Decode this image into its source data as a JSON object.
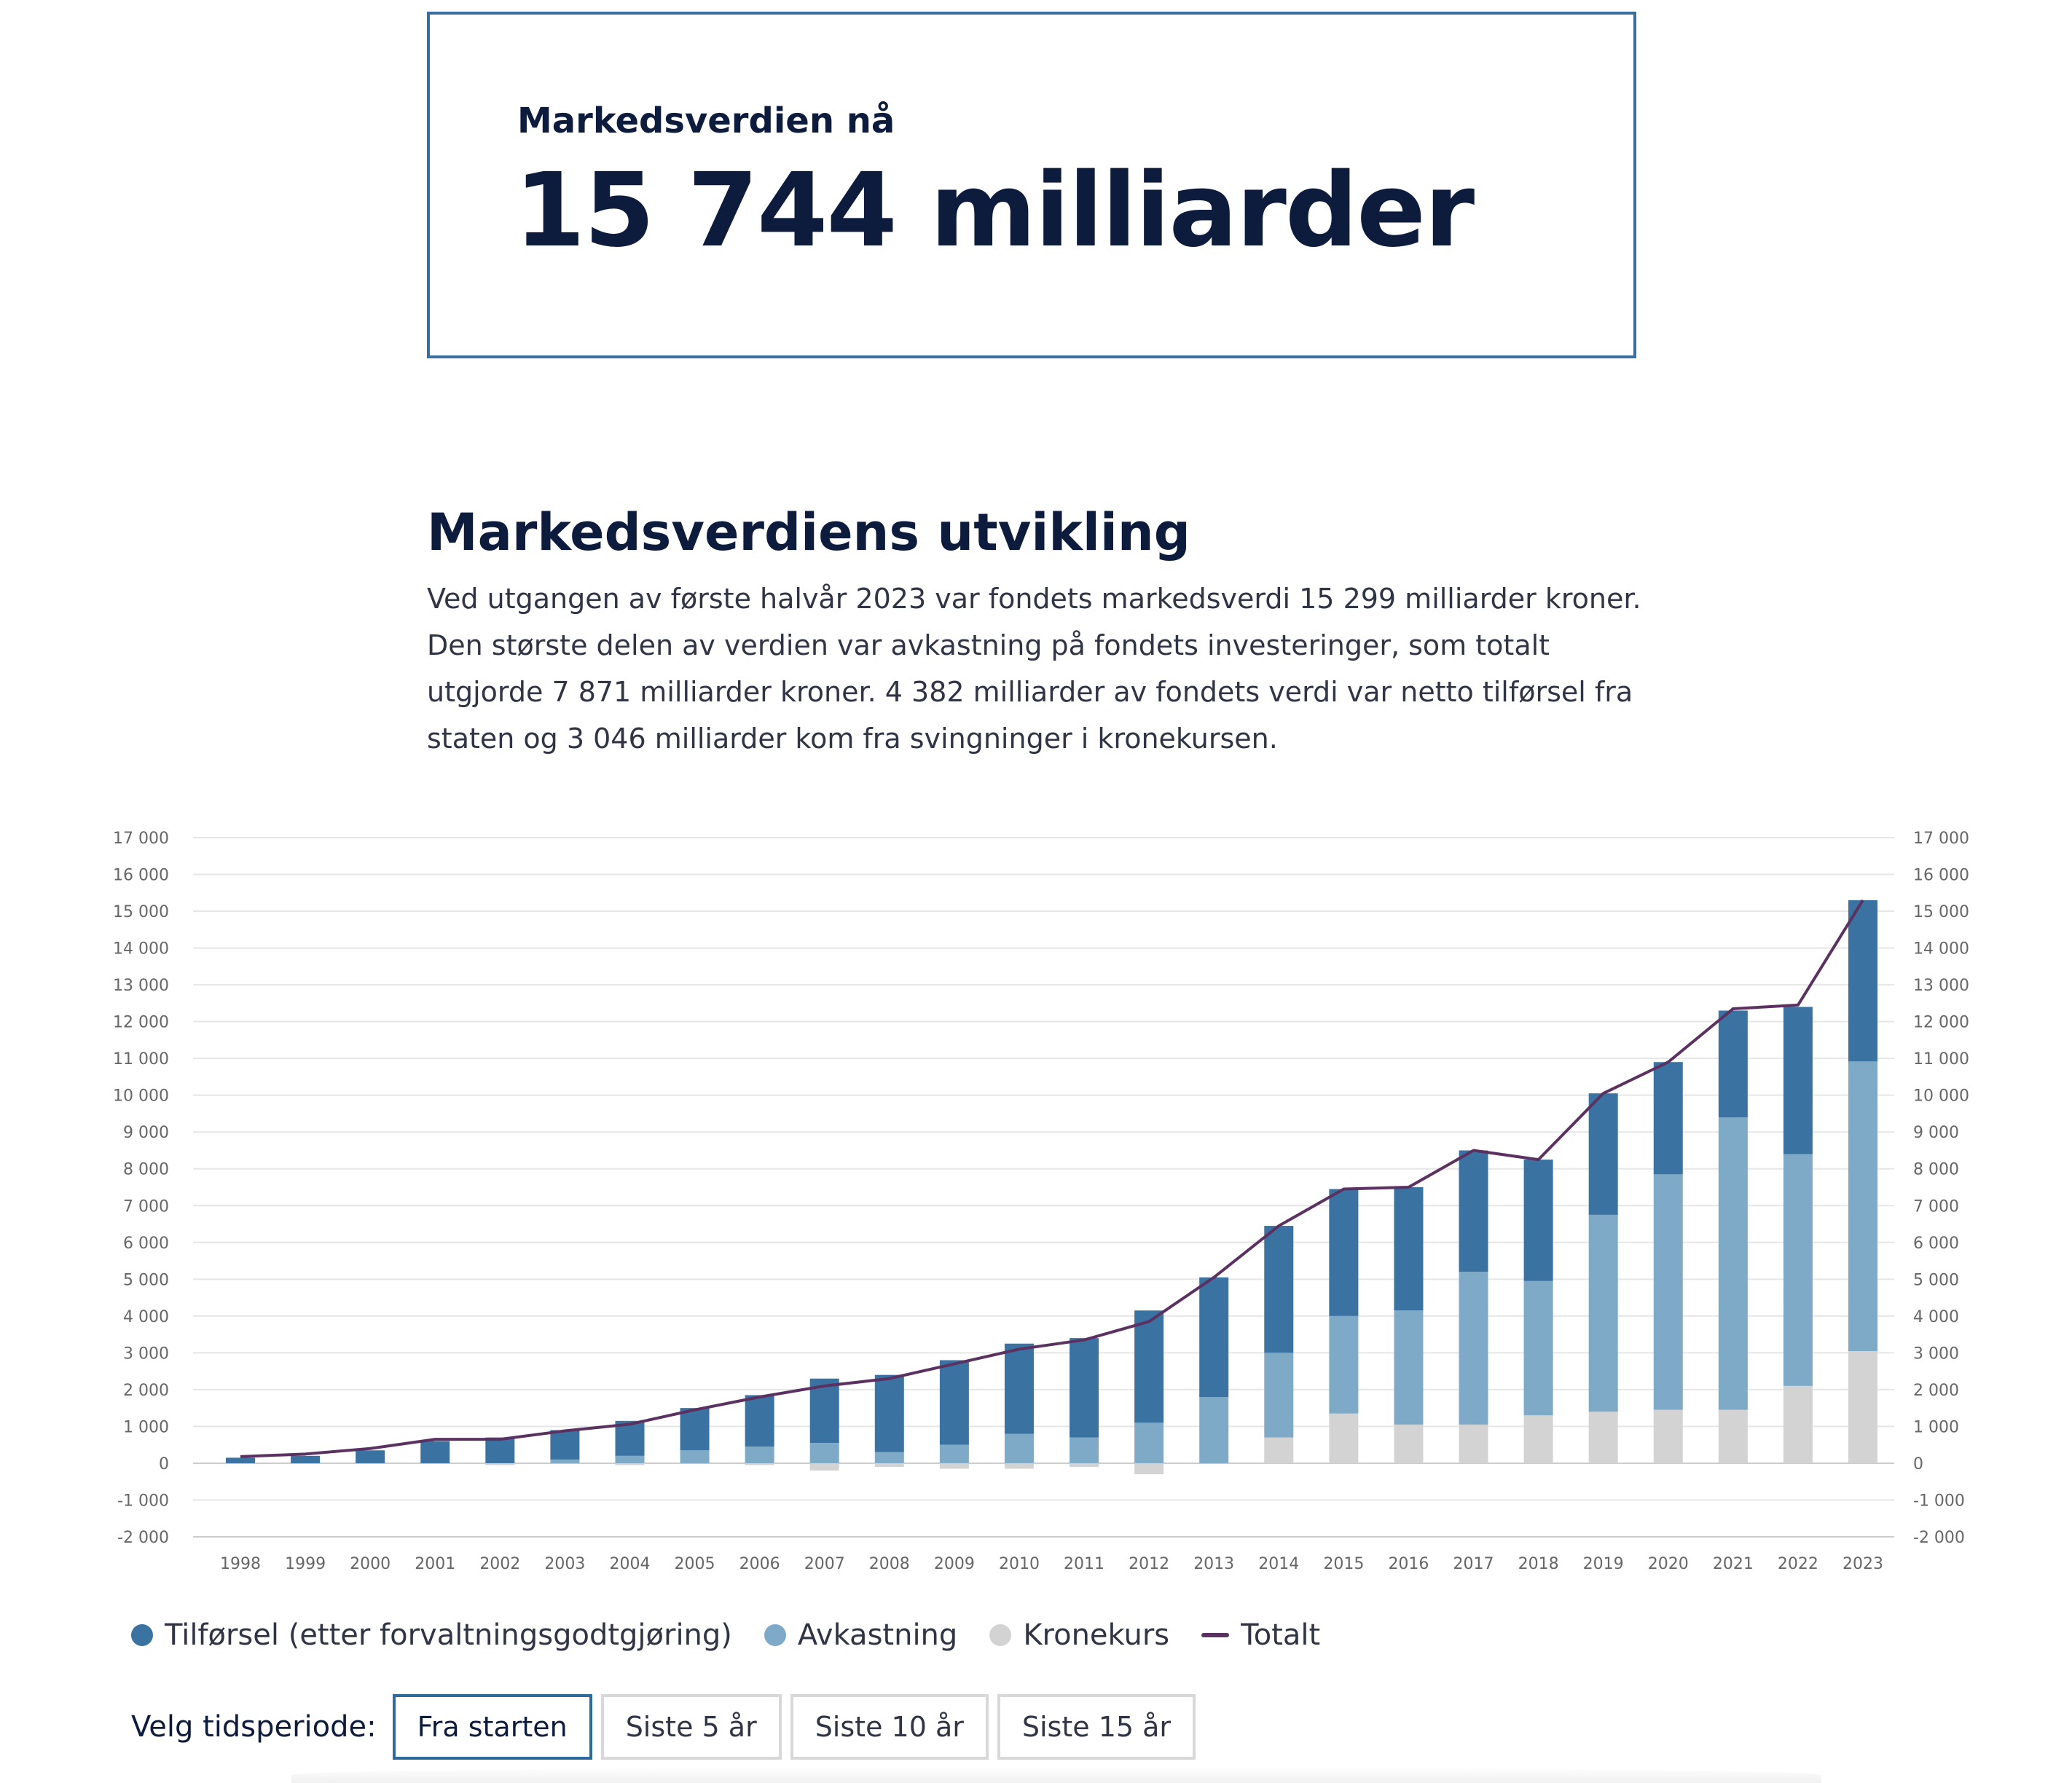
{
  "market_value": {
    "label": "Markedsverdien nå",
    "value": "15 744 milliarder"
  },
  "section": {
    "title": "Markedsverdiens utvikling",
    "text": "Ved utgangen av første halvår 2023 var fondets markedsverdi 15 299 milliarder kroner. Den største delen av verdien var avkastning på fondets investeringer, som totalt utgjorde 7 871 milliarder kroner. 4 382 milliarder av fondets verdi var netto tilførsel fra staten og 3 046 milliarder kom fra svingninger i kronekursen."
  },
  "colors": {
    "inflow": "#3a72a1",
    "return": "#7eaac8",
    "currency": "#d3d3d3",
    "total": "#5b3161",
    "grid": "#e6e6e6",
    "axis_text": "#666666"
  },
  "chart_data": {
    "type": "bar",
    "stacked": true,
    "title": "",
    "xlabel": "",
    "ylabel": "",
    "ylim": [
      -2000,
      17000
    ],
    "yticks": [
      -2000,
      -1000,
      0,
      1000,
      2000,
      3000,
      4000,
      5000,
      6000,
      7000,
      8000,
      9000,
      10000,
      11000,
      12000,
      13000,
      14000,
      15000,
      16000,
      17000
    ],
    "ytick_labels": [
      "-2 000",
      "-1 000",
      "0",
      "1 000",
      "2 000",
      "3 000",
      "4 000",
      "5 000",
      "6 000",
      "7 000",
      "8 000",
      "9 000",
      "10 000",
      "11 000",
      "12 000",
      "13 000",
      "14 000",
      "15 000",
      "16 000",
      "17 000"
    ],
    "grid": true,
    "categories": [
      "1998",
      "1999",
      "2000",
      "2001",
      "2002",
      "2003",
      "2004",
      "2005",
      "2006",
      "2007",
      "2008",
      "2009",
      "2010",
      "2011",
      "2012",
      "2013",
      "2014",
      "2015",
      "2016",
      "2017",
      "2018",
      "2019",
      "2020",
      "2021",
      "2022",
      "2023"
    ],
    "series": [
      {
        "name": "Kronekurs",
        "key": "currency",
        "values": [
          0,
          0,
          0,
          0,
          -50,
          0,
          -50,
          0,
          -50,
          -200,
          -100,
          -150,
          -150,
          -100,
          -300,
          0,
          700,
          1350,
          1050,
          1050,
          1300,
          1400,
          1450,
          1450,
          2100,
          3046
        ]
      },
      {
        "name": "Avkastning",
        "key": "return",
        "values": [
          0,
          0,
          0,
          0,
          0,
          100,
          200,
          350,
          450,
          550,
          300,
          500,
          800,
          700,
          1100,
          1800,
          2300,
          2650,
          3100,
          4150,
          3650,
          5350,
          6400,
          7950,
          6300,
          7871
        ]
      },
      {
        "name": "Tilførsel (etter forvaltningsgodtgjøring)",
        "key": "inflow",
        "values": [
          150,
          200,
          350,
          600,
          700,
          800,
          950,
          1150,
          1400,
          1750,
          2100,
          2300,
          2450,
          2700,
          3050,
          3250,
          3450,
          3450,
          3350,
          3300,
          3300,
          3300,
          3050,
          2900,
          4000,
          4382
        ]
      },
      {
        "name": "Totalt",
        "key": "total",
        "type": "line",
        "values": [
          180,
          250,
          400,
          650,
          650,
          880,
          1060,
          1450,
          1800,
          2100,
          2300,
          2700,
          3100,
          3350,
          3850,
          5050,
          6450,
          7450,
          7500,
          8500,
          8250,
          10050,
          10900,
          12350,
          12450,
          15299
        ]
      }
    ],
    "legend_position": "bottom-left"
  },
  "legend": {
    "items": [
      {
        "label": "Tilførsel (etter forvaltningsgodtgjøring)",
        "color": "#3a72a1"
      },
      {
        "label": "Avkastning",
        "color": "#7eaac8"
      },
      {
        "label": "Kronekurs",
        "color": "#d3d3d3"
      },
      {
        "label": "Totalt",
        "color": "#5b3161"
      }
    ]
  },
  "period": {
    "label": "Velg tidsperiode:",
    "buttons": [
      "Fra starten",
      "Siste 5 år",
      "Siste 10 år",
      "Siste 15 år"
    ],
    "selected": "Fra starten"
  }
}
